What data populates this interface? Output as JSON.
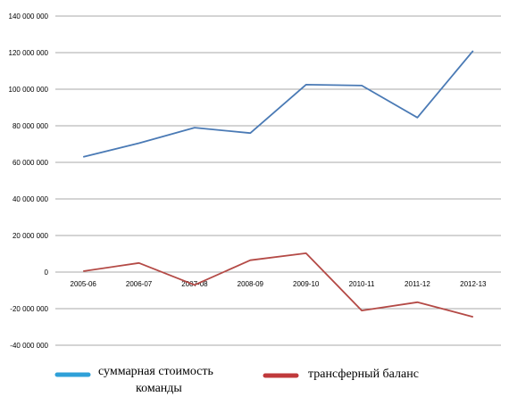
{
  "chart_data": {
    "type": "line",
    "categories": [
      "2005-06",
      "2006-07",
      "2007-08",
      "2008-09",
      "2009-10",
      "2010-11",
      "2011-12",
      "2012-13"
    ],
    "ylim": [
      -40000000,
      140000000
    ],
    "y_ticks": [
      "140 000 000",
      "120 000 000",
      "100 000 000",
      "80 000 000",
      "60 000 000",
      "40 000 000",
      "20 000 000",
      "0",
      "-20 000 000",
      "-40 000 000"
    ],
    "grid": true,
    "legend_position": "bottom",
    "series": [
      {
        "name_lines": [
          "суммарная стоимость",
          "команды"
        ],
        "color": "#4a7ab5",
        "values": [
          63000000,
          70500000,
          79000000,
          76000000,
          102500000,
          102000000,
          84500000,
          121000000
        ]
      },
      {
        "name_lines": [
          "трансферный баланс"
        ],
        "color": "#b44a46",
        "values": [
          500000,
          5000000,
          -7000000,
          6500000,
          10300000,
          -21000000,
          -16500000,
          -24500000
        ]
      }
    ],
    "legend_colors": [
      "#2fa0d8",
      "#c0393b"
    ]
  }
}
